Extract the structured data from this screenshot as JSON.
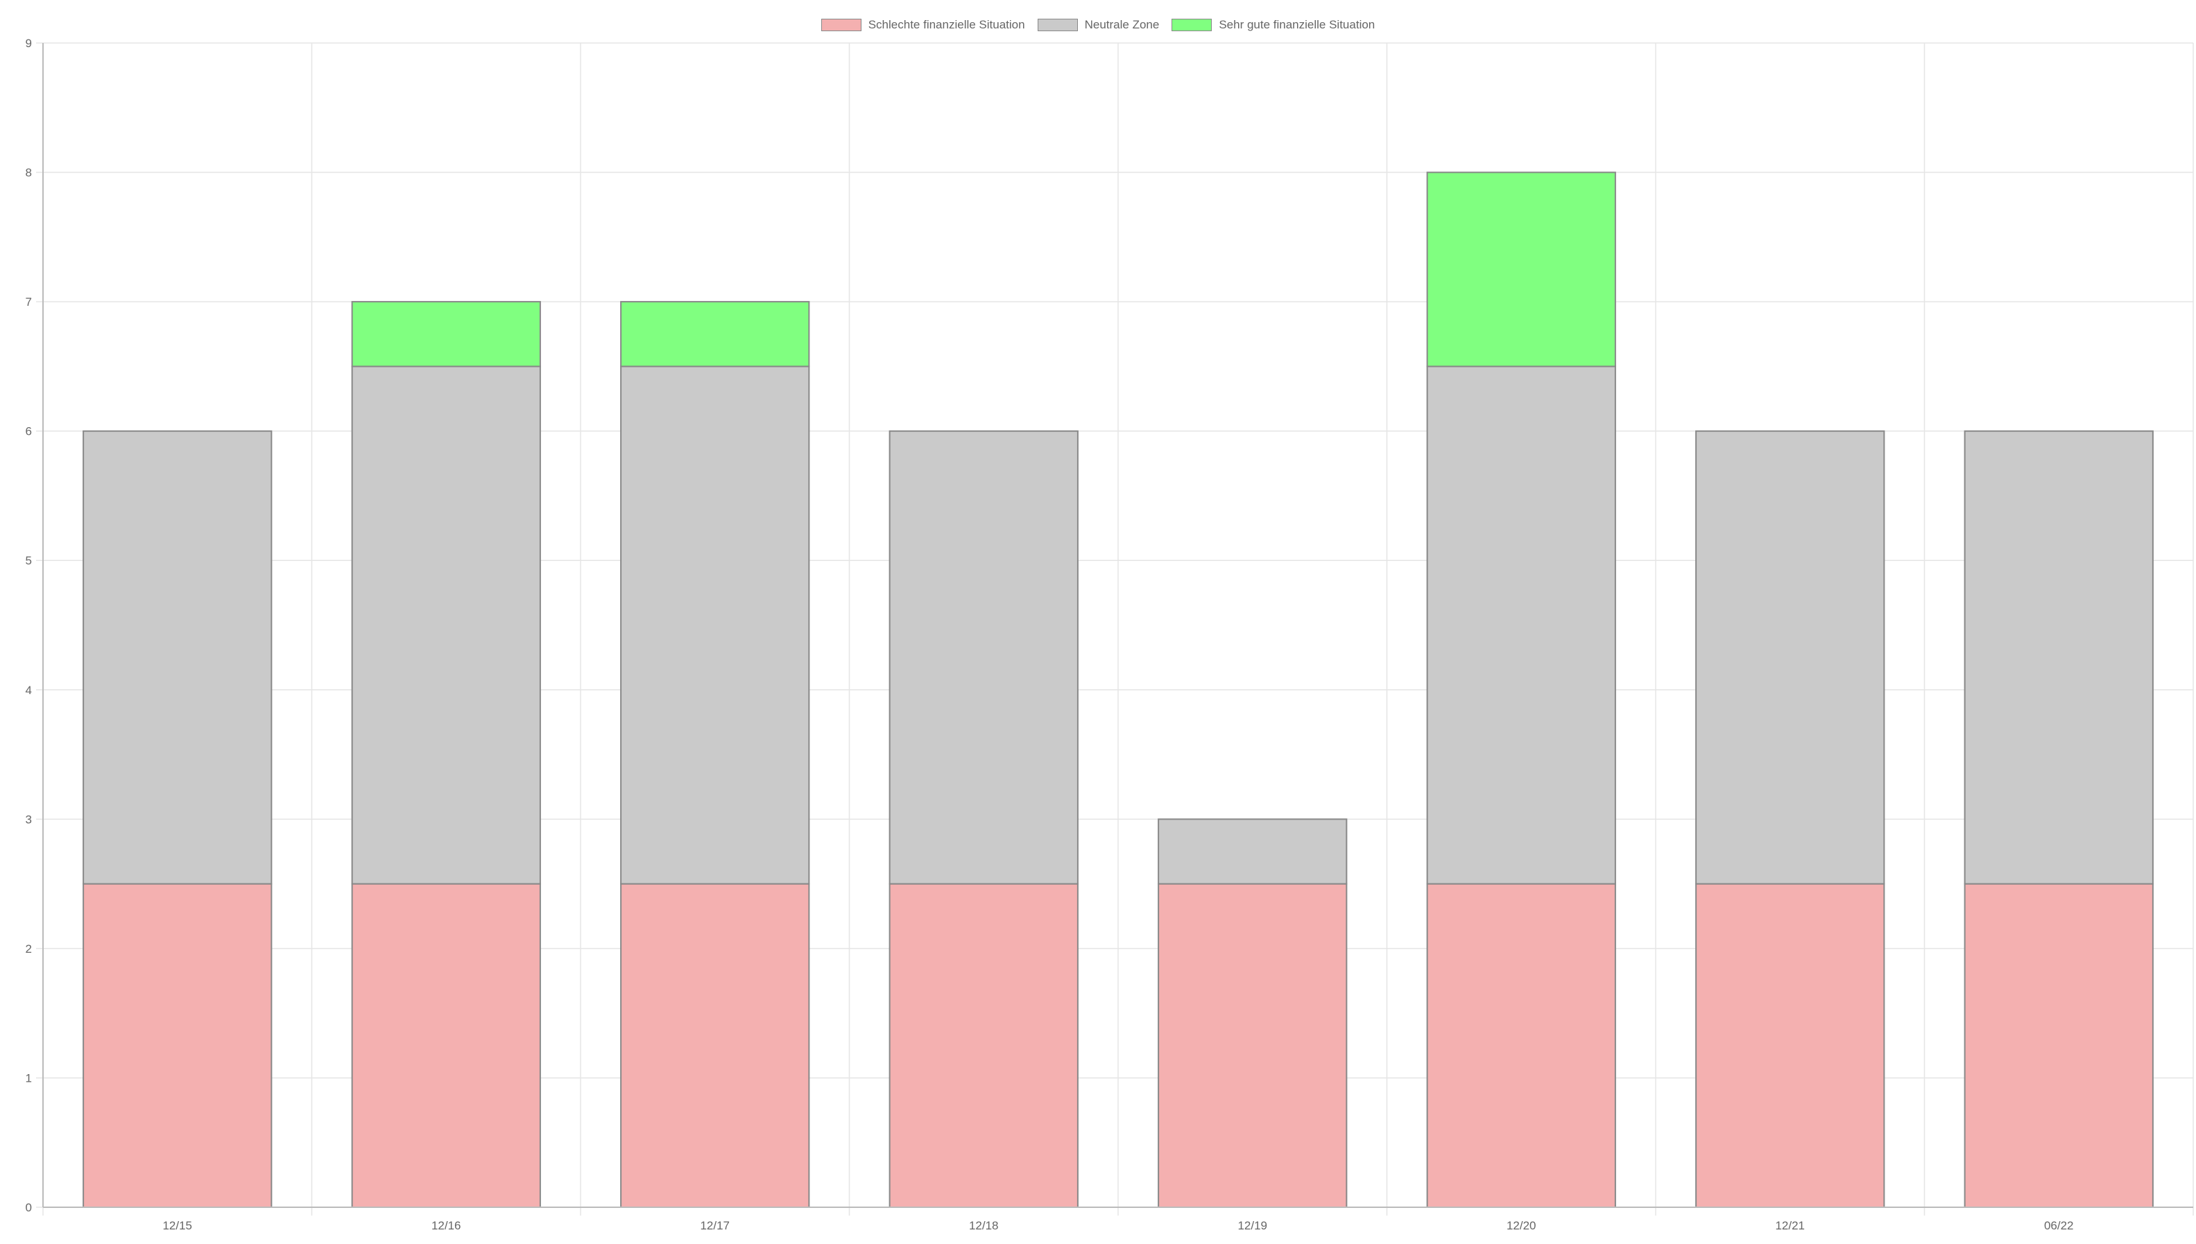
{
  "chart_data": {
    "type": "bar",
    "stacked": true,
    "categories": [
      "12/15",
      "12/16",
      "12/17",
      "12/18",
      "12/19",
      "12/20",
      "12/21",
      "06/22"
    ],
    "series": [
      {
        "name": "Schlechte finanzielle Situation",
        "color": "#f4b0b0",
        "values": [
          2.5,
          2.5,
          2.5,
          2.5,
          2.5,
          2.5,
          2.5,
          2.5
        ]
      },
      {
        "name": "Neutrale Zone",
        "color": "#cacaca",
        "values": [
          3.5,
          4,
          4,
          3.5,
          0.5,
          4,
          3.5,
          3.5
        ]
      },
      {
        "name": "Sehr gute finanzielle Situation",
        "color": "#80ff80",
        "values": [
          0,
          0.5,
          0.5,
          0,
          0,
          1.5,
          0,
          0
        ]
      }
    ],
    "ylim": [
      0,
      9
    ],
    "yticks": [
      "0",
      "1",
      "2",
      "3",
      "4",
      "5",
      "6",
      "7",
      "8",
      "9"
    ],
    "grid": true,
    "legend_position": "top-center",
    "border_color": "#888888",
    "grid_color": "#e5e5e5",
    "axis_color": "#bbbbbb",
    "xlabel": "",
    "ylabel": "",
    "title": ""
  }
}
